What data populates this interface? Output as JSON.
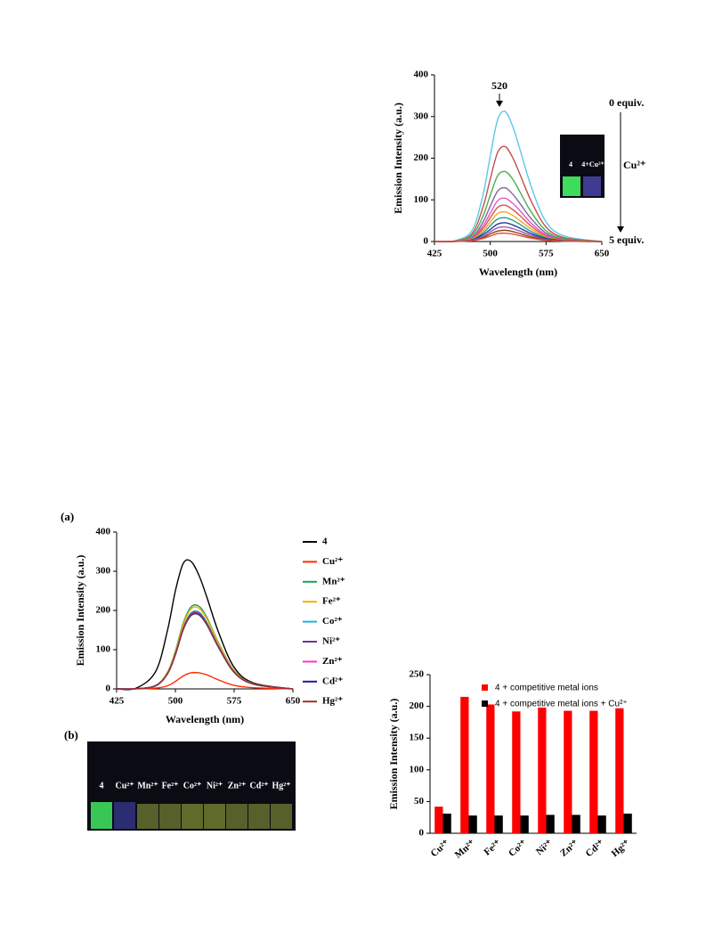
{
  "figure_labels": [
    "(a)",
    "(b)"
  ],
  "photo_b": {
    "labels": [
      "4",
      "Cu²⁺",
      "Mn²⁺",
      "Fe²⁺",
      "Co²⁺",
      "Ni²⁺",
      "Zn²⁺",
      "Cd²⁺",
      "Hg²⁺"
    ]
  },
  "chart_data": [
    {
      "type": "line",
      "x_label": "Wavelength (nm)",
      "y_label": "Emission Intensity (a.u.)",
      "annotations": [
        "520",
        "0 equiv.",
        "Cu²⁺",
        "5 equiv."
      ],
      "inset_labels": [
        "4",
        "4+Cu²⁺"
      ],
      "x": [
        425,
        450,
        475,
        490,
        500,
        510,
        520,
        530,
        540,
        555,
        575,
        600,
        650
      ],
      "xlim": [
        425,
        650
      ],
      "xticks": [
        425,
        500,
        575,
        650
      ],
      "ylim": [
        0,
        400
      ],
      "yticks": [
        0,
        100,
        200,
        300,
        400
      ],
      "series": [
        {
          "color": "#5bc8e8",
          "values": [
            0,
            0.9,
            25,
            110,
            205,
            293,
            312,
            277,
            221,
            132,
            47,
            13,
            0
          ]
        },
        {
          "color": "#c0504d",
          "values": [
            0,
            0.7,
            18,
            81,
            150,
            214,
            228,
            202,
            161,
            97,
            35,
            9,
            0
          ]
        },
        {
          "color": "#4caf50",
          "values": [
            0,
            0.5,
            14,
            60,
            111,
            158,
            168,
            150,
            119,
            71,
            26,
            7,
            0
          ]
        },
        {
          "color": "#8064a2",
          "values": [
            0,
            0.4,
            10,
            46,
            85,
            121,
            129,
            114,
            91,
            55,
            20,
            5,
            0
          ]
        },
        {
          "color": "#e056c8",
          "values": [
            0,
            0.3,
            8,
            37,
            68,
            98,
            104,
            92,
            74,
            44,
            16,
            4,
            0
          ]
        },
        {
          "color": "#d9534f",
          "values": [
            0,
            0.3,
            7,
            31,
            57,
            82,
            87,
            77,
            62,
            37,
            13,
            4,
            0
          ]
        },
        {
          "color": "#f5a623",
          "values": [
            0,
            0.2,
            6,
            25,
            47,
            67,
            71,
            63,
            50,
            30,
            11,
            3,
            0
          ]
        },
        {
          "color": "#2a9d8f",
          "values": [
            0,
            0.2,
            5,
            20,
            38,
            54,
            57,
            51,
            41,
            24,
            9,
            2,
            0
          ]
        },
        {
          "color": "#1f3a93",
          "values": [
            0,
            0.1,
            4,
            16,
            29,
            42,
            45,
            40,
            32,
            19,
            7,
            2,
            0
          ]
        },
        {
          "color": "#9b59b6",
          "values": [
            0,
            0.1,
            3,
            12,
            23,
            33,
            35,
            31,
            25,
            15,
            5,
            1,
            0
          ]
        },
        {
          "color": "#8b4513",
          "values": [
            0,
            0.1,
            2,
            9,
            18,
            25,
            27,
            24,
            19,
            11,
            4,
            1,
            0
          ]
        },
        {
          "color": "#e74c3c",
          "values": [
            0,
            0.1,
            2,
            7,
            13,
            19,
            20,
            18,
            14,
            8,
            3,
            1,
            0
          ]
        }
      ]
    },
    {
      "type": "line",
      "x_label": "Wavelength (nm)",
      "y_label": "Emission Intensity (a.u.)",
      "x": [
        425,
        450,
        475,
        490,
        500,
        510,
        520,
        530,
        540,
        555,
        575,
        600,
        650
      ],
      "xlim": [
        425,
        650
      ],
      "xticks": [
        425,
        500,
        575,
        650
      ],
      "ylim": [
        0,
        400
      ],
      "yticks": [
        0,
        100,
        200,
        300,
        400
      ],
      "series": [
        {
          "name": "4",
          "color": "#000000",
          "values": [
            0,
            2,
            45,
            150,
            250,
            320,
            325,
            290,
            235,
            145,
            55,
            15,
            0
          ]
        },
        {
          "name": "Cu²⁺",
          "color": "#ff2a00",
          "values": [
            0,
            0.1,
            2,
            8,
            19,
            33,
            41,
            41,
            36,
            23,
            9,
            3,
            0
          ]
        },
        {
          "name": "Mn²⁺",
          "color": "#1fa05a",
          "values": [
            0,
            0.4,
            9,
            43,
            97,
            168,
            209,
            211,
            183,
            118,
            47,
            13,
            0
          ]
        },
        {
          "name": "Fe²⁺",
          "color": "#f5b000",
          "values": [
            0,
            0.4,
            8,
            42,
            95,
            164,
            204,
            206,
            179,
            116,
            46,
            13,
            0
          ]
        },
        {
          "name": "Co²⁺",
          "color": "#1ab0e0",
          "values": [
            0,
            0.4,
            8,
            40,
            90,
            156,
            194,
            196,
            170,
            110,
            44,
            12,
            0
          ]
        },
        {
          "name": "Ni²⁺",
          "color": "#7030a0",
          "values": [
            0,
            0.4,
            8,
            39,
            89,
            154,
            191,
            193,
            167,
            108,
            43,
            12,
            0
          ]
        },
        {
          "name": "Zn²⁺",
          "color": "#ff33cc",
          "values": [
            0,
            0.4,
            8,
            39,
            88,
            152,
            189,
            191,
            166,
            107,
            43,
            12,
            0
          ]
        },
        {
          "name": "Cd²⁺",
          "color": "#1a1aa0",
          "values": [
            0,
            0.4,
            8,
            39,
            87,
            151,
            187,
            189,
            164,
            106,
            42,
            12,
            0
          ]
        },
        {
          "name": "Hg²⁺",
          "color": "#a0302a",
          "values": [
            0,
            0.4,
            8,
            39,
            88,
            152,
            189,
            191,
            166,
            107,
            43,
            12,
            0
          ]
        }
      ]
    },
    {
      "type": "bar",
      "y_label": "Emission Intensity (a.u.)",
      "categories": [
        "Cu²⁺",
        "Mn²⁺",
        "Fe²⁺",
        "Co²⁺",
        "Ni²⁺",
        "Zn²⁺",
        "Cd²⁺",
        "Hg²⁺"
      ],
      "ylim": [
        0,
        250
      ],
      "yticks": [
        0,
        50,
        100,
        150,
        200,
        250
      ],
      "series": [
        {
          "name": "4 + competitive metal ions",
          "color": "#ff0000",
          "values": [
            42,
            215,
            203,
            192,
            198,
            193,
            193,
            197
          ]
        },
        {
          "name": "4 + competitive metal ions + Cu²⁺",
          "color": "#000000",
          "values": [
            31,
            28,
            28,
            28,
            29,
            29,
            28,
            31
          ]
        }
      ]
    }
  ]
}
